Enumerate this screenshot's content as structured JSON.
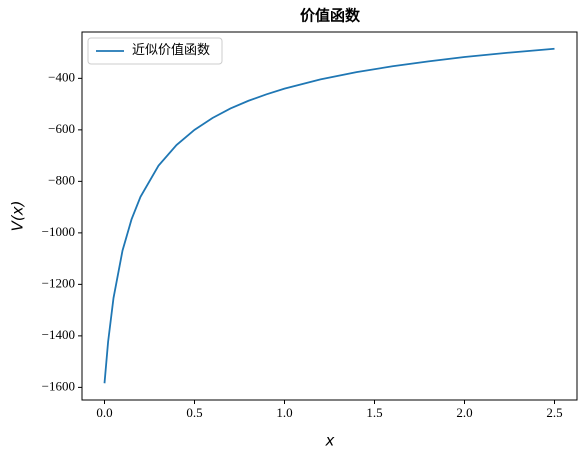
{
  "chart_data": {
    "type": "line",
    "title": "价值函数",
    "xlabel": "x",
    "ylabel": "V(x)",
    "x": [
      0,
      0.02,
      0.05,
      0.1,
      0.15,
      0.2,
      0.3,
      0.4,
      0.5,
      0.6,
      0.7,
      0.8,
      0.9,
      1.0,
      1.2,
      1.4,
      1.6,
      1.8,
      2.0,
      2.25,
      2.5
    ],
    "series": [
      {
        "name": "近似价值函数",
        "color": "#1f77b4",
        "values": [
          -1584,
          -1423,
          -1253,
          -1069,
          -948,
          -860,
          -739,
          -659,
          -600,
          -554,
          -517,
          -487,
          -462,
          -440,
          -404,
          -376,
          -353,
          -334,
          -317,
          -300,
          -285
        ]
      }
    ],
    "xlim": [
      -0.125,
      2.625
    ],
    "ylim": [
      -1649,
      -220
    ],
    "xticks": [
      {
        "value": 0,
        "label": "0.0"
      },
      0.5,
      {
        "value": 1,
        "label": "1.0"
      },
      1.5,
      {
        "value": 2,
        "label": "2.0"
      },
      2.5
    ],
    "yticks": [
      {
        "value": -1600,
        "label": "−1600"
      },
      {
        "value": -1400,
        "label": "−1400"
      },
      {
        "value": -1200,
        "label": "−1200"
      },
      {
        "value": -1000,
        "label": "−1000"
      },
      {
        "value": -800,
        "label": "−800"
      },
      {
        "value": -600,
        "label": "−600"
      },
      {
        "value": -400,
        "label": "−400"
      }
    ],
    "grid": false,
    "legend": "upper left"
  }
}
